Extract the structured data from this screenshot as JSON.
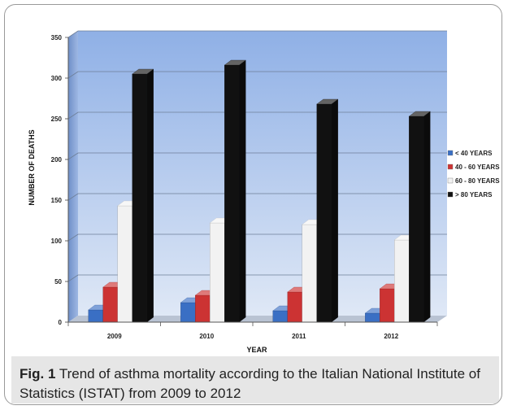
{
  "chart_data": {
    "type": "bar",
    "title": "",
    "xlabel": "YEAR",
    "ylabel": "NUMBER OF DEATHS",
    "categories": [
      "2009",
      "2010",
      "2011",
      "2012"
    ],
    "ylim": [
      0,
      350
    ],
    "yticks": [
      0,
      50,
      100,
      150,
      200,
      250,
      300,
      350
    ],
    "grid": true,
    "legend_position": "right",
    "series": [
      {
        "name": "< 40 YEARS",
        "color": "#3a6fc4",
        "values": [
          15,
          24,
          14,
          11
        ]
      },
      {
        "name": "40 - 60 YEARS",
        "color": "#cc3333",
        "values": [
          43,
          33,
          37,
          41
        ]
      },
      {
        "name": "60 - 80 YEARS",
        "color": "#f2f2f2",
        "values": [
          143,
          122,
          120,
          101
        ]
      },
      {
        "name": "> 80 YEARS",
        "color": "#111111",
        "values": [
          305,
          316,
          268,
          253
        ]
      }
    ]
  },
  "caption": {
    "label": "Fig. 1",
    "text": " Trend of asthma mortality according to the Italian National Institute of Statistics (ISTAT) from 2009 to 2012"
  }
}
